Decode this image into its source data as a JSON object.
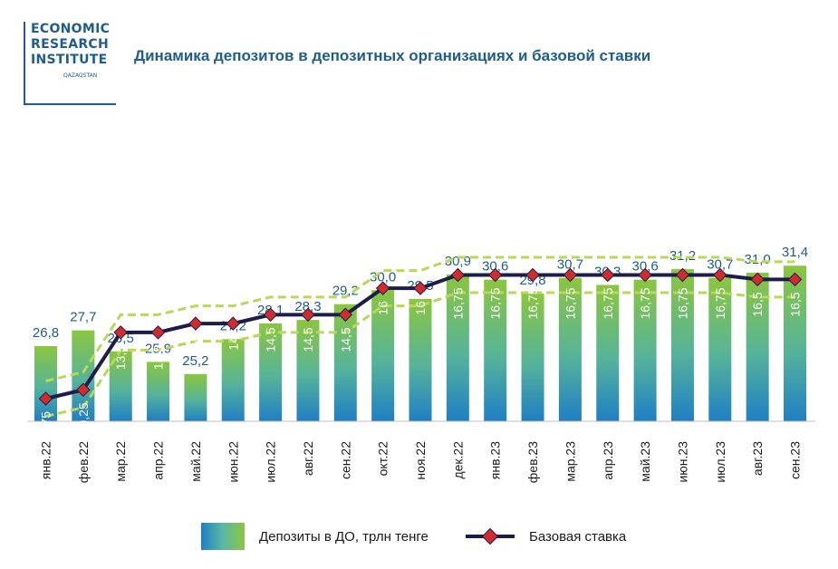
{
  "logo": {
    "line1": "ECONOMIC",
    "line2": "RESEARCH",
    "line3": "INSTITUTE",
    "sub": "QAZAQSTAN"
  },
  "colors": {
    "title": "#1f5d8a",
    "bar_top": "#8bc63f",
    "bar_bottom": "#1f7fc4",
    "rate_line": "#1c1d4a",
    "rate_marker": "#d22b2b",
    "band": "#b8d957",
    "label": "#1f5d8a"
  },
  "chart_data": {
    "type": "bar",
    "title": "Динамика депозитов в депозитных организациях и базовой ставки",
    "categories": [
      "янв.22",
      "фев.22",
      "мар.22",
      "апр.22",
      "май.22",
      "июн.22",
      "июл.22",
      "авг.22",
      "сен.22",
      "окт.22",
      "ноя.22",
      "дек.22",
      "янв.23",
      "фев.23",
      "мар.23",
      "апр.23",
      "май.23",
      "июн.23",
      "июл.23",
      "авг.23",
      "сен.23"
    ],
    "series": [
      {
        "name": "Депозиты в ДО, трлн тенге",
        "type": "bar",
        "values": [
          26.8,
          27.7,
          26.5,
          25.9,
          25.2,
          27.2,
          28.1,
          28.3,
          29.2,
          30.0,
          29.5,
          30.9,
          30.6,
          29.8,
          30.7,
          30.3,
          30.6,
          31.2,
          30.7,
          31.0,
          31.4
        ],
        "labels": [
          "26,8",
          "27,7",
          "26,5",
          "25,9",
          "25,2",
          "27,2",
          "28,1",
          "28,3",
          "29,2",
          "30,0",
          "29,5",
          "30,9",
          "30,6",
          "29,8",
          "30,7",
          "30,3",
          "30,6",
          "31,2",
          "30,7",
          "31,0",
          "31,4"
        ]
      },
      {
        "name": "Базовая ставка",
        "type": "line",
        "values": [
          9.75,
          10.25,
          13.5,
          13.5,
          14,
          14,
          14.5,
          14.5,
          14.5,
          16,
          16,
          16.75,
          16.75,
          16.75,
          16.75,
          16.75,
          16.75,
          16.75,
          16.75,
          16.5,
          16.5
        ],
        "labels": [
          "9,75",
          "10,25",
          "13,5",
          "13,5",
          "14",
          "14",
          "14,5",
          "14,5",
          "14,5",
          "16",
          "16",
          "16,75",
          "16,75",
          "16,75",
          "16,75",
          "16,75",
          "16,75",
          "16,75",
          "16,75",
          "16,5",
          "16,5"
        ],
        "band": [
          1,
          -1
        ]
      }
    ]
  }
}
